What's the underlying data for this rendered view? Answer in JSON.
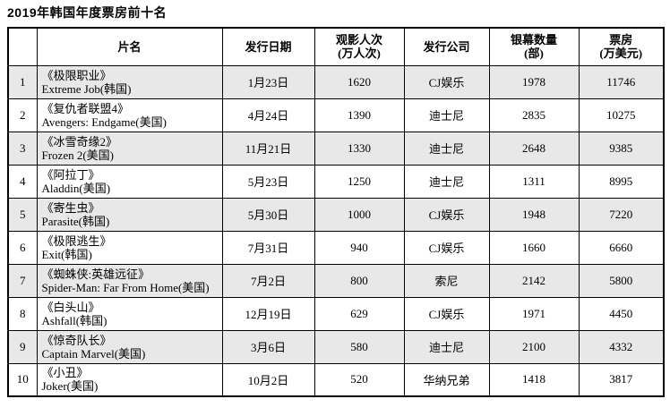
{
  "title": "2019年韩国年度票房前十名",
  "colors": {
    "row_stripe": "#e8e8e8",
    "border": "#000000",
    "background": "#ffffff"
  },
  "table": {
    "headers": {
      "rank": "",
      "film": "片名",
      "date": "发行日期",
      "audience_line1": "观影人次",
      "audience_line2": "(万人次)",
      "distributor": "发行公司",
      "screens_line1": "银幕数量",
      "screens_line2": "(部)",
      "boxoffice_line1": "票房",
      "boxoffice_line2": "(万美元)"
    },
    "rows": [
      {
        "rank": "1",
        "film_cn": "《极限职业》",
        "film_en": "Extreme Job(韩国)",
        "date": "1月23日",
        "audience": "1620",
        "distributor": "CJ娱乐",
        "screens": "1978",
        "boxoffice": "11746"
      },
      {
        "rank": "2",
        "film_cn": "《复仇者联盟4》",
        "film_en": "Avengers: Endgame(美国)",
        "date": "4月24日",
        "audience": "1390",
        "distributor": "迪士尼",
        "screens": "2835",
        "boxoffice": "10275"
      },
      {
        "rank": "3",
        "film_cn": "《冰雪奇缘2》",
        "film_en": "Frozen 2(美国)",
        "date": "11月21日",
        "audience": "1330",
        "distributor": "迪士尼",
        "screens": "2648",
        "boxoffice": "9385"
      },
      {
        "rank": "4",
        "film_cn": "《阿拉丁》",
        "film_en": "Aladdin(美国)",
        "date": "5月23日",
        "audience": "1250",
        "distributor": "迪士尼",
        "screens": "1311",
        "boxoffice": "8995"
      },
      {
        "rank": "5",
        "film_cn": "《寄生虫》",
        "film_en": "Parasite(韩国)",
        "date": "5月30日",
        "audience": "1000",
        "distributor": "CJ娱乐",
        "screens": "1948",
        "boxoffice": "7220"
      },
      {
        "rank": "6",
        "film_cn": "《极限逃生》",
        "film_en": "Exit(韩国)",
        "date": "7月31日",
        "audience": "940",
        "distributor": "CJ娱乐",
        "screens": "1660",
        "boxoffice": "6660"
      },
      {
        "rank": "7",
        "film_cn": "《蜘蛛侠:英雄远征》",
        "film_en": "Spider-Man: Far From Home(美国)",
        "date": "7月2日",
        "audience": "800",
        "distributor": "索尼",
        "screens": "2142",
        "boxoffice": "5800"
      },
      {
        "rank": "8",
        "film_cn": "《白头山》",
        "film_en": "Ashfall(韩国)",
        "date": "12月19日",
        "audience": "629",
        "distributor": "CJ娱乐",
        "screens": "1971",
        "boxoffice": "4450"
      },
      {
        "rank": "9",
        "film_cn": "《惊奇队长》",
        "film_en": "Captain Marvel(美国)",
        "date": "3月6日",
        "audience": "580",
        "distributor": "迪士尼",
        "screens": "2100",
        "boxoffice": "4332"
      },
      {
        "rank": "10",
        "film_cn": "《小丑》",
        "film_en": "Joker(美国)",
        "date": "10月2日",
        "audience": "520",
        "distributor": "华纳兄弟",
        "screens": "1418",
        "boxoffice": "3817"
      }
    ]
  }
}
